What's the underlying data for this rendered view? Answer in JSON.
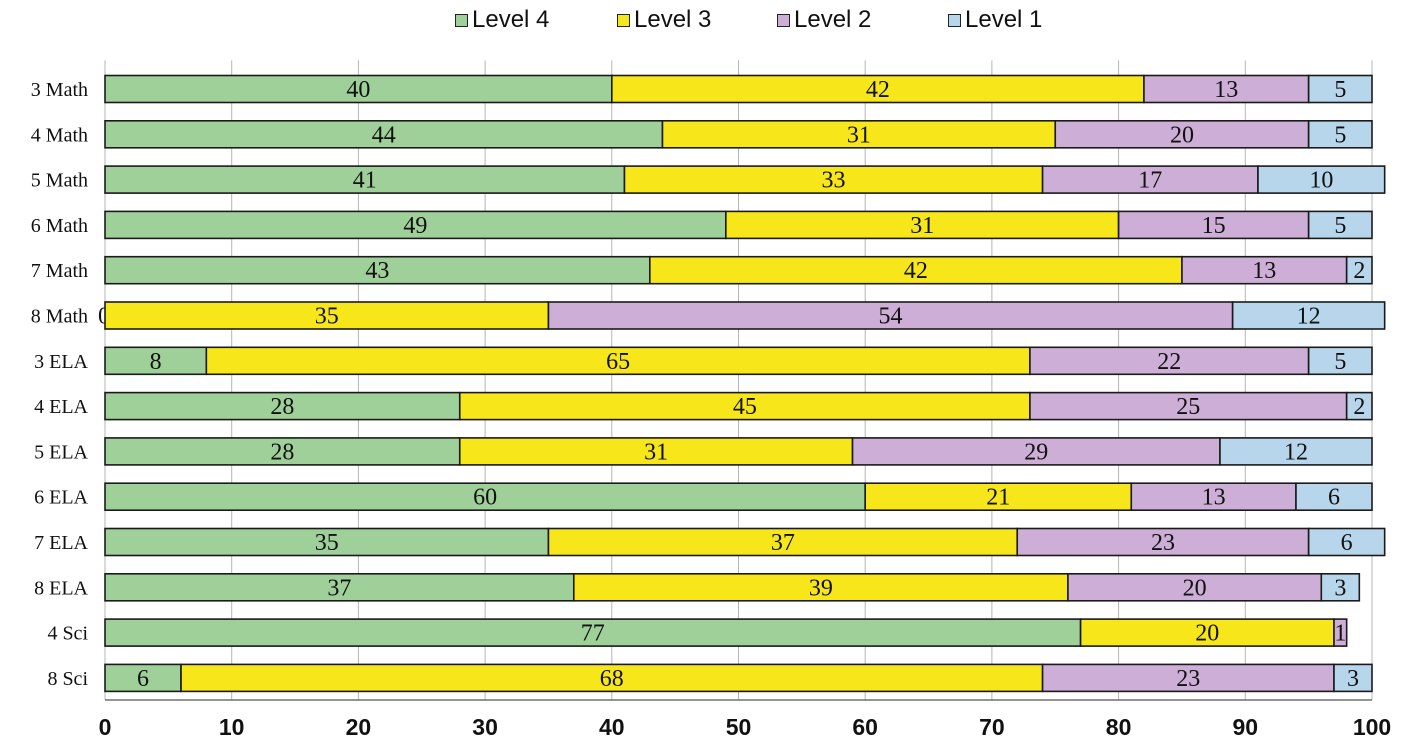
{
  "colors": {
    "Level 4": "#9fd09a",
    "Level 3": "#f7e71a",
    "Level 2": "#cdaed6",
    "Level 1": "#b7d6ec"
  },
  "legend": [
    "Level 4",
    "Level 3",
    "Level 2",
    "Level 1"
  ],
  "chart_data": {
    "type": "bar",
    "orientation": "horizontal",
    "stacked": true,
    "title": "",
    "xlabel": "",
    "ylabel": "",
    "xlim": [
      0,
      100
    ],
    "xticks": [
      "0",
      "10",
      "20",
      "30",
      "40",
      "50",
      "60",
      "70",
      "80",
      "90",
      "100"
    ],
    "legend_position": "top",
    "grid": "vertical",
    "categories": [
      "3 Math",
      "4 Math",
      "5 Math",
      "6 Math",
      "7 Math",
      "8 Math",
      "3 ELA",
      "4 ELA",
      "5 ELA",
      "6 ELA",
      "7 ELA",
      "8 ELA",
      "4 Sci",
      "8 Sci"
    ],
    "series": [
      {
        "name": "Level 4",
        "values": [
          40,
          44,
          41,
          49,
          43,
          0,
          8,
          28,
          28,
          60,
          35,
          37,
          77,
          6
        ]
      },
      {
        "name": "Level 3",
        "values": [
          42,
          31,
          33,
          31,
          42,
          35,
          65,
          45,
          31,
          21,
          37,
          39,
          20,
          68
        ]
      },
      {
        "name": "Level 2",
        "values": [
          13,
          20,
          17,
          15,
          13,
          54,
          22,
          25,
          29,
          13,
          23,
          20,
          1,
          23
        ]
      },
      {
        "name": "Level 1",
        "values": [
          5,
          5,
          10,
          5,
          2,
          12,
          5,
          2,
          12,
          6,
          6,
          3,
          0,
          3
        ]
      }
    ]
  }
}
